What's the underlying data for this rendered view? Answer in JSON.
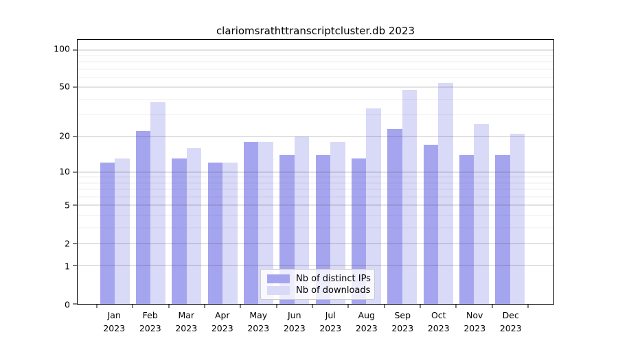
{
  "chart_data": {
    "type": "bar",
    "title": "clariomsrathttranscriptcluster.db 2023",
    "categories": [
      "Jan",
      "Feb",
      "Mar",
      "Apr",
      "May",
      "Jun",
      "Jul",
      "Aug",
      "Sep",
      "Oct",
      "Nov",
      "Dec"
    ],
    "category_year": "2023",
    "series": [
      {
        "name": "Nb of distinct IPs",
        "color": "#a5a5ef",
        "values": [
          12,
          22,
          13,
          12,
          18,
          14,
          14,
          13,
          23,
          17,
          14,
          14
        ]
      },
      {
        "name": "Nb of downloads",
        "color": "#d9d9f8",
        "values": [
          13,
          38,
          16,
          12,
          18,
          20,
          18,
          34,
          48,
          54,
          25,
          21
        ]
      }
    ],
    "yscale": "log1p",
    "ylim": [
      0,
      120
    ],
    "yticks": [
      0,
      1,
      2,
      5,
      10,
      20,
      50,
      100
    ],
    "gridlines_major": [
      1,
      2,
      5,
      10,
      20,
      50,
      100
    ],
    "gridlines_minor": [
      3,
      4,
      6,
      7,
      8,
      9,
      30,
      40,
      60,
      70,
      80,
      90
    ],
    "grid": true,
    "legend_position": "lower center"
  }
}
